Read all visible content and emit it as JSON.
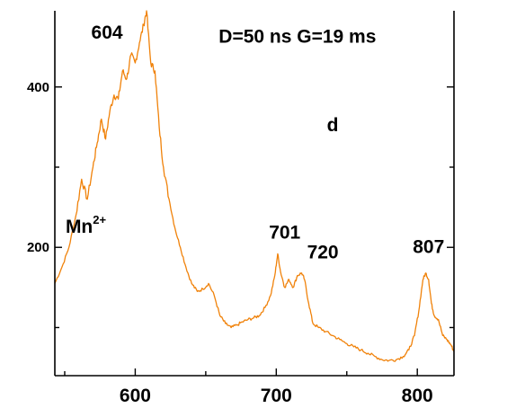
{
  "chart_data": {
    "type": "line",
    "title": "",
    "xlabel": "",
    "ylabel": "",
    "xlim": [
      543,
      826
    ],
    "ylim": [
      40,
      495
    ],
    "x_ticks": [
      600,
      700,
      800
    ],
    "x_minor_ticks": [
      550,
      650,
      750
    ],
    "y_ticks": [
      200,
      400
    ],
    "y_minor_ticks": [
      100,
      300
    ],
    "grid": false,
    "legend": "none",
    "series": [
      {
        "color": "#F0820A",
        "x": [
          543,
          548,
          553,
          558,
          562,
          566,
          570,
          573,
          576,
          579,
          582,
          585,
          588,
          591,
          594,
          597,
          600,
          603,
          606,
          608,
          611,
          614,
          617,
          620,
          624,
          628,
          632,
          636,
          640,
          644,
          648,
          652,
          656,
          660,
          664,
          668,
          672,
          676,
          680,
          684,
          688,
          692,
          696,
          699,
          701,
          703,
          706,
          709,
          712,
          715,
          718,
          720,
          723,
          726,
          730,
          735,
          740,
          745,
          750,
          755,
          760,
          765,
          770,
          775,
          780,
          785,
          790,
          794,
          798,
          801,
          804,
          806,
          808,
          810,
          812,
          815,
          818,
          821,
          824,
          826
        ],
        "y": [
          155,
          175,
          200,
          240,
          285,
          260,
          300,
          330,
          360,
          335,
          370,
          390,
          385,
          420,
          410,
          440,
          430,
          455,
          478,
          495,
          430,
          420,
          350,
          300,
          260,
          225,
          200,
          175,
          155,
          145,
          148,
          155,
          140,
          115,
          105,
          100,
          103,
          107,
          110,
          112,
          115,
          125,
          140,
          165,
          192,
          170,
          150,
          160,
          150,
          165,
          168,
          160,
          130,
          105,
          100,
          95,
          90,
          85,
          80,
          76,
          72,
          68,
          64,
          60,
          59,
          60,
          64,
          72,
          90,
          120,
          160,
          168,
          160,
          130,
          115,
          110,
          90,
          85,
          78,
          70
        ]
      }
    ],
    "annotations": [
      {
        "text": "604",
        "x": 580,
        "y": 460
      },
      {
        "text": "D=50 ns G=19 ms",
        "x": 715,
        "y": 455
      },
      {
        "text": "d",
        "x": 740,
        "y": 345
      },
      {
        "text": "Mn",
        "sup": "2+",
        "x": 565,
        "y": 218
      },
      {
        "text": "701",
        "x": 706,
        "y": 211
      },
      {
        "text": "720",
        "x": 733,
        "y": 186
      },
      {
        "text": "807",
        "x": 808,
        "y": 193
      }
    ]
  }
}
